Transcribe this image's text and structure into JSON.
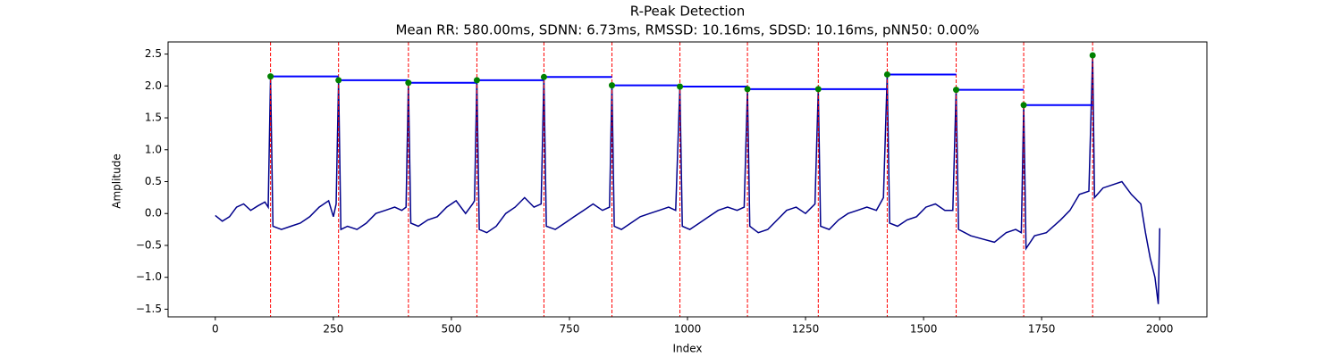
{
  "chart_data": {
    "type": "line",
    "title": "R-Peak Detection",
    "subtitle": "Mean RR: 580.00ms, SDNN: 6.73ms, RMSSD: 10.16ms, SDSD: 10.16ms, pNN50: 0.00%",
    "x_label": "Index",
    "y_label": "Amplitude",
    "xlim": [
      -100,
      2100
    ],
    "ylim": [
      -1.62,
      2.69
    ],
    "xticks": [
      0,
      250,
      500,
      750,
      1000,
      1250,
      1500,
      1750,
      2000
    ],
    "yticks": [
      {
        "value": -1.5,
        "label": "−1.5"
      },
      {
        "value": -1.0,
        "label": "−1.0"
      },
      {
        "value": -0.5,
        "label": "−0.5"
      },
      {
        "value": 0,
        "label": "0.0"
      },
      0.5,
      {
        "value": 1,
        "label": "1.0"
      },
      1.5,
      {
        "value": 2,
        "label": "2.0"
      },
      2.5
    ],
    "signal": {
      "color": "#00008b",
      "x": [
        0,
        15,
        30,
        45,
        60,
        75,
        90,
        105,
        112,
        117,
        122,
        140,
        160,
        180,
        200,
        220,
        240,
        250,
        256,
        261,
        266,
        280,
        300,
        320,
        340,
        360,
        380,
        395,
        404,
        409,
        414,
        430,
        450,
        470,
        490,
        510,
        530,
        545,
        549,
        554,
        559,
        575,
        595,
        615,
        635,
        655,
        675,
        690,
        696,
        701,
        720,
        740,
        760,
        780,
        800,
        820,
        835,
        840,
        845,
        860,
        880,
        900,
        920,
        940,
        960,
        975,
        984,
        989,
        1005,
        1025,
        1045,
        1065,
        1085,
        1105,
        1120,
        1127,
        1132,
        1150,
        1170,
        1190,
        1210,
        1230,
        1250,
        1270,
        1277,
        1282,
        1300,
        1320,
        1340,
        1360,
        1380,
        1400,
        1415,
        1423,
        1428,
        1445,
        1465,
        1485,
        1505,
        1525,
        1545,
        1562,
        1569,
        1574,
        1600,
        1625,
        1650,
        1675,
        1695,
        1707,
        1712,
        1717,
        1735,
        1760,
        1790,
        1810,
        1830,
        1850,
        1858,
        1862,
        1880,
        1900,
        1920,
        1940,
        1960,
        1970,
        1980,
        1990,
        1997,
        2000
      ],
      "values": [
        -0.03,
        -0.12,
        -0.05,
        0.1,
        0.15,
        0.05,
        0.12,
        0.18,
        0.1,
        2.15,
        -0.2,
        -0.25,
        -0.2,
        -0.15,
        -0.05,
        0.1,
        0.2,
        -0.05,
        0.15,
        2.09,
        -0.25,
        -0.2,
        -0.25,
        -0.15,
        0.0,
        0.05,
        0.1,
        0.05,
        0.1,
        2.05,
        -0.15,
        -0.2,
        -0.1,
        -0.05,
        0.1,
        0.2,
        0.0,
        0.15,
        0.2,
        2.09,
        -0.25,
        -0.3,
        -0.2,
        0.0,
        0.1,
        0.25,
        0.1,
        0.15,
        2.14,
        -0.2,
        -0.25,
        -0.15,
        -0.05,
        0.05,
        0.15,
        0.05,
        0.1,
        2.01,
        -0.2,
        -0.25,
        -0.15,
        -0.05,
        0.0,
        0.05,
        0.1,
        0.05,
        1.99,
        -0.2,
        -0.25,
        -0.15,
        -0.05,
        0.05,
        0.1,
        0.05,
        0.1,
        1.95,
        -0.2,
        -0.3,
        -0.25,
        -0.1,
        0.05,
        0.1,
        0.0,
        0.15,
        1.95,
        -0.2,
        -0.25,
        -0.1,
        0.0,
        0.05,
        0.1,
        0.05,
        0.25,
        2.18,
        -0.15,
        -0.2,
        -0.1,
        -0.05,
        0.1,
        0.15,
        0.05,
        0.05,
        1.94,
        -0.25,
        -0.35,
        -0.4,
        -0.45,
        -0.3,
        -0.25,
        -0.3,
        1.7,
        -0.55,
        -0.35,
        -0.3,
        -0.1,
        0.05,
        0.3,
        0.35,
        2.48,
        0.25,
        0.4,
        0.45,
        0.5,
        0.3,
        0.15,
        -0.3,
        -0.7,
        -1.0,
        -1.42,
        -0.23
      ]
    },
    "peaks": {
      "color": "green",
      "line_color": "red",
      "level_color": "blue",
      "x": [
        117,
        261,
        409,
        554,
        696,
        840,
        984,
        1127,
        1277,
        1423,
        1569,
        1712,
        1858
      ],
      "values": [
        2.15,
        2.09,
        2.05,
        2.09,
        2.14,
        2.01,
        1.99,
        1.95,
        1.95,
        2.18,
        1.94,
        1.7,
        2.48
      ]
    }
  }
}
